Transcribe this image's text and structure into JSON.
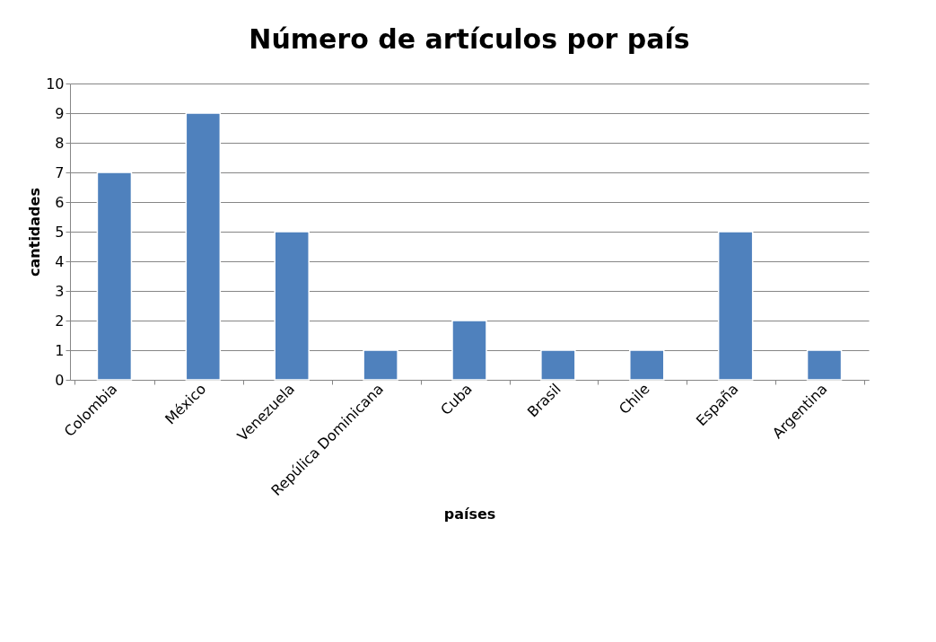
{
  "chart_data": {
    "type": "bar",
    "title": "Número de artículos por país",
    "xlabel": "países",
    "ylabel": "cantidades",
    "categories": [
      "Colombia",
      "México",
      "Venezuela",
      "Repúlica Dominicana",
      "Cuba",
      "Brasil",
      "Chile",
      "España",
      "Argentina"
    ],
    "values": [
      7,
      9,
      5,
      1,
      2,
      1,
      1,
      5,
      1
    ],
    "color": "#4f81bd",
    "ylim": [
      0,
      10
    ],
    "yticks": [
      0,
      1,
      2,
      3,
      4,
      5,
      6,
      7,
      8,
      9,
      10
    ],
    "grid": "y"
  }
}
